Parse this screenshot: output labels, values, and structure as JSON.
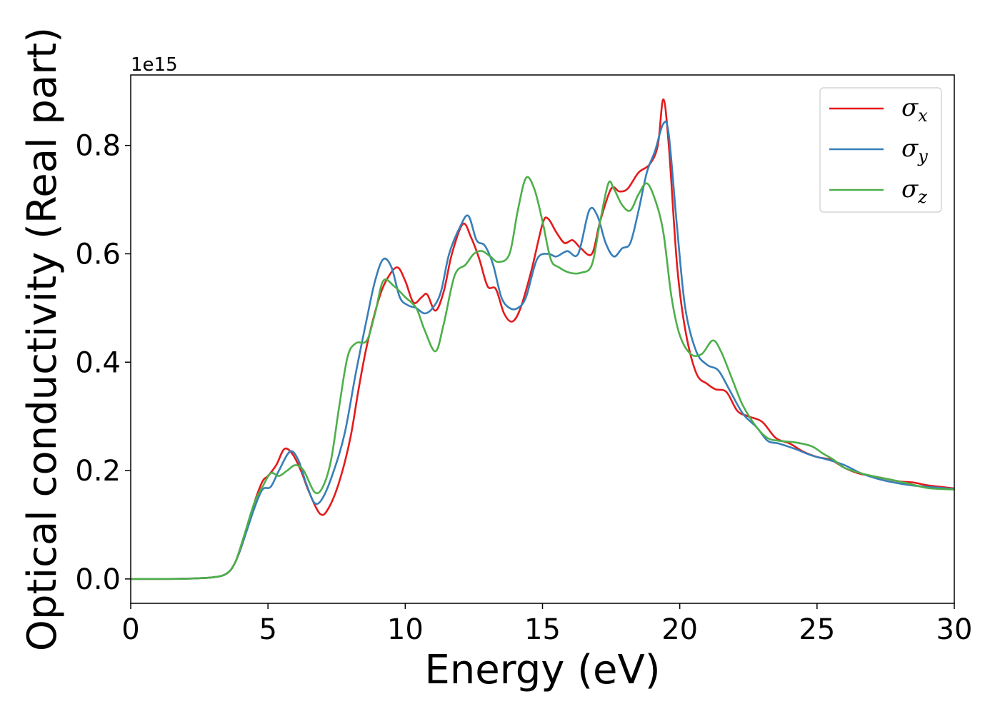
{
  "chart_data": {
    "type": "line",
    "title": "",
    "xlabel": "Energy (eV)",
    "ylabel": "Optical conductivity (Real part)",
    "y_offset_label": "1e15",
    "xlim": [
      0,
      30
    ],
    "ylim": [
      -0.045,
      0.93
    ],
    "x_ticks": [
      0,
      5,
      10,
      15,
      20,
      25,
      30
    ],
    "x_tick_labels": [
      "0",
      "5",
      "10",
      "15",
      "20",
      "25",
      "30"
    ],
    "y_ticks": [
      0.0,
      0.2,
      0.4,
      0.6,
      0.8
    ],
    "y_tick_labels": [
      "0.0",
      "0.2",
      "0.4",
      "0.6",
      "0.8"
    ],
    "grid": false,
    "legend_position": "top-right",
    "series": [
      {
        "name": "σx",
        "symbol": "σ",
        "subscript": "x",
        "color": "#e41a1c",
        "x": [
          0,
          1,
          2,
          3,
          3.5,
          3.8,
          4.1,
          4.5,
          4.8,
          5.0,
          5.3,
          5.6,
          5.9,
          6.2,
          6.5,
          6.9,
          7.2,
          7.6,
          8.0,
          8.3,
          8.6,
          9.0,
          9.3,
          9.7,
          10.0,
          10.3,
          10.6,
          10.8,
          11.1,
          11.4,
          11.7,
          12.1,
          12.4,
          12.7,
          13.0,
          13.3,
          13.6,
          13.9,
          14.2,
          14.6,
          15.0,
          15.2,
          15.5,
          15.8,
          16.1,
          16.4,
          16.8,
          17.1,
          17.5,
          17.8,
          18.1,
          18.5,
          18.9,
          19.2,
          19.4,
          19.6,
          19.9,
          20.2,
          20.6,
          21.0,
          21.3,
          21.7,
          22.1,
          22.5,
          23.0,
          23.5,
          24.0,
          24.5,
          25.0,
          25.5,
          26.0,
          26.5,
          27.0,
          27.5,
          28.0,
          28.5,
          29.0,
          29.5,
          30
        ],
        "y": [
          0.0,
          0.0,
          0.0005,
          0.003,
          0.01,
          0.03,
          0.07,
          0.14,
          0.18,
          0.19,
          0.21,
          0.24,
          0.23,
          0.2,
          0.16,
          0.12,
          0.13,
          0.18,
          0.26,
          0.35,
          0.43,
          0.51,
          0.55,
          0.575,
          0.55,
          0.51,
          0.52,
          0.525,
          0.495,
          0.53,
          0.6,
          0.655,
          0.63,
          0.59,
          0.54,
          0.535,
          0.49,
          0.475,
          0.5,
          0.57,
          0.655,
          0.665,
          0.64,
          0.62,
          0.625,
          0.61,
          0.6,
          0.66,
          0.72,
          0.715,
          0.72,
          0.75,
          0.765,
          0.8,
          0.885,
          0.8,
          0.58,
          0.46,
          0.38,
          0.36,
          0.35,
          0.345,
          0.31,
          0.3,
          0.29,
          0.26,
          0.25,
          0.235,
          0.225,
          0.22,
          0.205,
          0.195,
          0.19,
          0.185,
          0.18,
          0.178,
          0.173,
          0.17,
          0.167
        ]
      },
      {
        "name": "σy",
        "symbol": "σ",
        "subscript": "y",
        "color": "#377eb8",
        "x": [
          0,
          1,
          2,
          3,
          3.5,
          3.8,
          4.1,
          4.5,
          4.8,
          5.1,
          5.4,
          5.8,
          6.1,
          6.4,
          6.7,
          7.0,
          7.4,
          7.8,
          8.2,
          8.6,
          8.9,
          9.2,
          9.5,
          9.8,
          10.1,
          10.4,
          10.7,
          11.0,
          11.3,
          11.6,
          12.0,
          12.3,
          12.6,
          12.9,
          13.2,
          13.5,
          13.8,
          14.1,
          14.4,
          14.8,
          15.2,
          15.5,
          15.9,
          16.3,
          16.7,
          17.0,
          17.3,
          17.6,
          17.9,
          18.2,
          18.5,
          18.8,
          19.1,
          19.4,
          19.6,
          19.9,
          20.2,
          20.6,
          21.0,
          21.4,
          21.8,
          22.3,
          22.8,
          23.2,
          23.6,
          24.2,
          24.8,
          25.4,
          26.0,
          26.6,
          27.2,
          27.8,
          28.4,
          29.0,
          29.5,
          30
        ],
        "y": [
          0.0,
          0.0,
          0.0005,
          0.003,
          0.01,
          0.03,
          0.07,
          0.13,
          0.165,
          0.17,
          0.2,
          0.235,
          0.22,
          0.175,
          0.14,
          0.15,
          0.2,
          0.27,
          0.38,
          0.48,
          0.55,
          0.59,
          0.575,
          0.52,
          0.505,
          0.5,
          0.49,
          0.5,
          0.53,
          0.6,
          0.65,
          0.67,
          0.625,
          0.615,
          0.58,
          0.52,
          0.5,
          0.5,
          0.52,
          0.59,
          0.6,
          0.595,
          0.605,
          0.6,
          0.68,
          0.67,
          0.62,
          0.595,
          0.61,
          0.62,
          0.68,
          0.75,
          0.79,
          0.84,
          0.82,
          0.65,
          0.5,
          0.42,
          0.395,
          0.385,
          0.35,
          0.305,
          0.28,
          0.255,
          0.25,
          0.24,
          0.228,
          0.22,
          0.21,
          0.195,
          0.185,
          0.178,
          0.173,
          0.17,
          0.168,
          0.166
        ]
      },
      {
        "name": "σz",
        "symbol": "σ",
        "subscript": "z",
        "color": "#4daf4a",
        "x": [
          0,
          1,
          2,
          3,
          3.5,
          3.8,
          4.1,
          4.5,
          4.8,
          5.1,
          5.4,
          5.7,
          6.0,
          6.3,
          6.7,
          7.0,
          7.3,
          7.6,
          7.9,
          8.2,
          8.6,
          8.9,
          9.2,
          9.6,
          10.0,
          10.4,
          10.7,
          11.1,
          11.4,
          11.8,
          12.2,
          12.5,
          12.8,
          13.1,
          13.4,
          13.8,
          14.1,
          14.4,
          14.7,
          15.0,
          15.3,
          15.6,
          16.0,
          16.4,
          16.8,
          17.1,
          17.4,
          17.6,
          17.9,
          18.2,
          18.5,
          18.8,
          19.1,
          19.4,
          19.7,
          20.0,
          20.4,
          20.8,
          21.2,
          21.5,
          21.9,
          22.3,
          22.8,
          23.2,
          23.6,
          24.2,
          24.8,
          25.2,
          25.6,
          26.0,
          26.6,
          27.2,
          27.8,
          28.4,
          29.0,
          29.5,
          30
        ],
        "y": [
          0.0,
          0.0,
          0.0005,
          0.003,
          0.01,
          0.03,
          0.075,
          0.14,
          0.17,
          0.195,
          0.19,
          0.2,
          0.21,
          0.2,
          0.16,
          0.17,
          0.22,
          0.32,
          0.41,
          0.435,
          0.44,
          0.49,
          0.55,
          0.54,
          0.52,
          0.5,
          0.46,
          0.42,
          0.47,
          0.56,
          0.58,
          0.6,
          0.605,
          0.595,
          0.585,
          0.6,
          0.68,
          0.74,
          0.72,
          0.66,
          0.59,
          0.575,
          0.565,
          0.565,
          0.58,
          0.66,
          0.73,
          0.72,
          0.69,
          0.68,
          0.71,
          0.73,
          0.7,
          0.64,
          0.52,
          0.45,
          0.415,
          0.415,
          0.44,
          0.42,
          0.37,
          0.32,
          0.28,
          0.26,
          0.255,
          0.252,
          0.245,
          0.232,
          0.22,
          0.205,
          0.195,
          0.188,
          0.182,
          0.175,
          0.168,
          0.166,
          0.165
        ]
      }
    ]
  }
}
